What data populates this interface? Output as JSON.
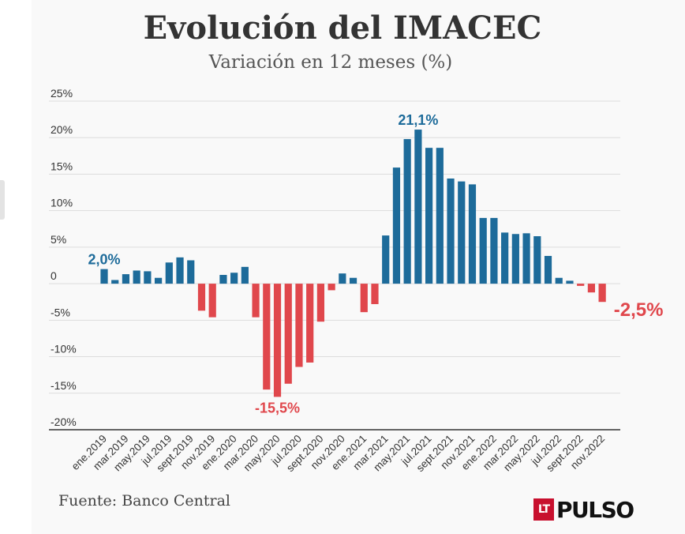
{
  "header": {
    "title": "Evolución del IMACEC",
    "subtitle": "Variación en 12 meses (%)"
  },
  "footer": {
    "source": "Fuente: Banco Central",
    "logo_badge": "LT",
    "logo_text": "PULSO"
  },
  "colors": {
    "positive": "#1d6b9a",
    "negative": "#e0474c",
    "grid": "#dddddd",
    "axis": "#333333"
  },
  "chart_data": {
    "type": "bar",
    "title": "Evolución del IMACEC",
    "subtitle": "Variación en 12 meses (%)",
    "xlabel": "",
    "ylabel": "",
    "ylim": [
      -20,
      25
    ],
    "yticks": [
      25,
      20,
      15,
      10,
      5,
      0,
      -5,
      -10,
      -15,
      -20
    ],
    "ytick_labels": [
      "25%",
      "20%",
      "15%",
      "10%",
      "5%",
      "0",
      "-5%",
      "-10%",
      "-15%",
      "-20%"
    ],
    "grid": true,
    "categories": [
      "ene.2019",
      "feb.2019",
      "mar.2019",
      "abr.2019",
      "may.2019",
      "jun.2019",
      "jul.2019",
      "ago.2019",
      "sept.2019",
      "oct.2019",
      "nov.2019",
      "dic.2019",
      "ene.2020",
      "feb.2020",
      "mar.2020",
      "abr.2020",
      "may.2020",
      "jun.2020",
      "jul.2020",
      "ago.2020",
      "sept.2020",
      "oct.2020",
      "nov.2020",
      "dic.2020",
      "ene.2021",
      "feb.2021",
      "mar.2021",
      "abr.2021",
      "may.2021",
      "jun.2021",
      "jul.2021",
      "ago.2021",
      "sept.2021",
      "oct.2021",
      "nov.2021",
      "dic.2021",
      "ene.2022",
      "feb.2022",
      "mar.2022",
      "abr.2022",
      "may.2022",
      "jun.2022",
      "jul.2022",
      "ago.2022",
      "sept.2022",
      "oct.2022",
      "nov.2022"
    ],
    "x_tick_labels": [
      "ene.2019",
      "mar.2019",
      "may.2019",
      "jul.2019",
      "sept.2019",
      "nov.2019",
      "ene.2020",
      "mar.2020",
      "may.2020",
      "jul.2020",
      "sept.2020",
      "nov.2020",
      "ene.2021",
      "mar.2021",
      "may.2021",
      "jul.2021",
      "sept.2021",
      "nov.2021",
      "ene.2022",
      "mar.2022",
      "may.2022",
      "jul.2022",
      "sept.2022",
      "nov.2022"
    ],
    "values": [
      2.0,
      0.5,
      1.3,
      1.8,
      1.7,
      0.8,
      2.9,
      3.6,
      3.2,
      -3.7,
      -4.6,
      1.2,
      1.5,
      2.3,
      -4.6,
      -14.5,
      -15.5,
      -13.7,
      -11.4,
      -10.8,
      -5.2,
      -0.9,
      1.4,
      0.8,
      -3.9,
      -2.8,
      6.6,
      15.9,
      19.8,
      21.1,
      18.6,
      18.6,
      14.4,
      14.0,
      13.6,
      9.0,
      9.0,
      7.0,
      6.8,
      6.9,
      6.5,
      3.8,
      0.8,
      0.4,
      -0.3,
      -1.2,
      -2.5
    ],
    "annotations": [
      {
        "index": 0,
        "text": "2,0%",
        "color": "#1d6b9a"
      },
      {
        "index": 16,
        "text": "-15,5%",
        "color": "#e0474c"
      },
      {
        "index": 29,
        "text": "21,1%",
        "color": "#1d6b9a"
      },
      {
        "index": 46,
        "text": "-2,5%",
        "color": "#e0474c"
      }
    ]
  }
}
